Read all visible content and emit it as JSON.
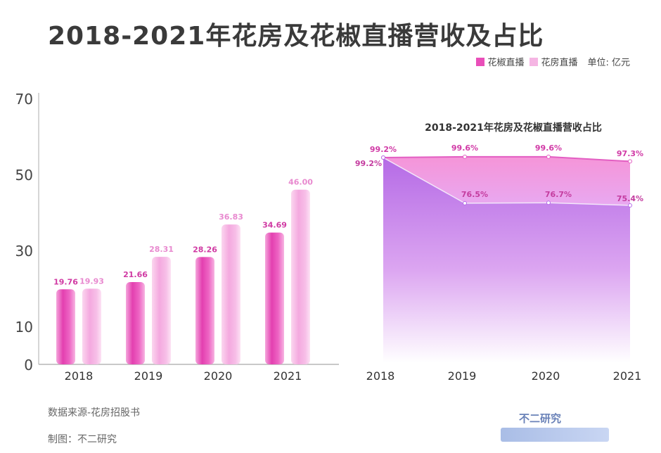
{
  "title": "2018-2021年花房及花椒直播营收及占比",
  "legend": {
    "items": [
      {
        "label": "花椒直播",
        "color": "#e94fb9"
      },
      {
        "label": "花房直播",
        "color": "#f5b5e3"
      }
    ],
    "unit": "单位: 亿元"
  },
  "chart_data": [
    {
      "type": "bar",
      "categories": [
        "2018",
        "2019",
        "2020",
        "2021"
      ],
      "series": [
        {
          "name": "花椒直播",
          "values": [
            19.76,
            21.66,
            28.26,
            34.69
          ],
          "labels": [
            "19.76",
            "21.66",
            "28.26",
            "34.69"
          ]
        },
        {
          "name": "花房直播",
          "values": [
            19.93,
            28.31,
            36.83,
            46.0
          ],
          "labels": [
            "19.93",
            "28.31",
            "36.83",
            "46.00"
          ]
        }
      ],
      "yticks": [
        "0",
        "10",
        "30",
        "50",
        "70"
      ],
      "ylim": [
        0,
        70
      ]
    },
    {
      "type": "area",
      "title": "2018-2021年花房及花椒直播营收占比",
      "categories": [
        "2018",
        "2019",
        "2020",
        "2021"
      ],
      "series": [
        {
          "values": [
            99.2,
            99.6,
            99.6,
            97.3
          ],
          "labels": [
            "99.2%",
            "99.6%",
            "99.6%",
            "97.3%"
          ],
          "color": "#f07fd0"
        },
        {
          "values": [
            99.2,
            76.5,
            76.7,
            75.4
          ],
          "labels": [
            "99.2%",
            "76.5%",
            "76.7%",
            "75.4%"
          ],
          "color": "#b46be8"
        }
      ]
    }
  ],
  "footer": {
    "source": "数据来源-花房招股书",
    "author": "制图：不二研究"
  },
  "brand": "不二研究"
}
